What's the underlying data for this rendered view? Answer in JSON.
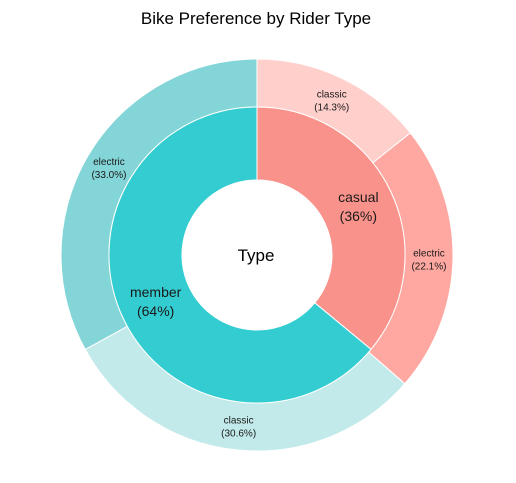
{
  "chart_data": {
    "type": "pie",
    "title": "Bike Preference by Rider Type",
    "center_label": "Type",
    "inner_ring": [
      {
        "name": "casual",
        "label": "(36%)",
        "percent": 36,
        "color": "#F8928A"
      },
      {
        "name": "member",
        "label": "(64%)",
        "percent": 64,
        "color": "#33CCD1"
      }
    ],
    "outer_ring": [
      {
        "name": "classic",
        "parent": "casual",
        "label": "(14.3%)",
        "percent": 14.3,
        "color": "#FFCFCB"
      },
      {
        "name": "electric",
        "parent": "casual",
        "label": "(22.1%)",
        "percent": 22.1,
        "color": "#FFA8A2"
      },
      {
        "name": "classic",
        "parent": "member",
        "label": "(30.6%)",
        "percent": 30.6,
        "color": "#C3EAEA"
      },
      {
        "name": "electric",
        "parent": "member",
        "label": "(33.0%)",
        "percent": 33.0,
        "color": "#84D5D7"
      }
    ]
  }
}
